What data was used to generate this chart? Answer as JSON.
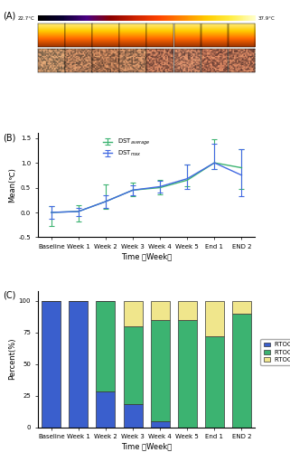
{
  "panel_A_label": "(A)",
  "panel_B_label": "(B)",
  "panel_C_label": "(C)",
  "colorbar_min": "22.7°C",
  "colorbar_max": "37.9°C",
  "time_labels": [
    "Baseline",
    "Week 1",
    "Week 2",
    "Week 3",
    "Week 4",
    "Week 5",
    "End 1",
    "END 2"
  ],
  "dst_avg_mean": [
    0.0,
    0.02,
    0.22,
    0.45,
    0.5,
    0.65,
    1.0,
    0.9
  ],
  "dst_avg_err_pos": [
    0.12,
    0.13,
    0.35,
    0.15,
    0.15,
    0.32,
    0.48,
    0.38
  ],
  "dst_avg_err_neg": [
    0.28,
    0.2,
    0.14,
    0.13,
    0.13,
    0.12,
    0.12,
    0.42
  ],
  "dst_max_mean": [
    0.0,
    0.02,
    0.22,
    0.45,
    0.52,
    0.68,
    1.0,
    0.75
  ],
  "dst_max_err_pos": [
    0.13,
    0.08,
    0.12,
    0.1,
    0.12,
    0.28,
    0.38,
    0.52
  ],
  "dst_max_err_neg": [
    0.13,
    0.1,
    0.12,
    0.1,
    0.12,
    0.2,
    0.12,
    0.43
  ],
  "line_color_avg": "#3cb371",
  "line_color_max": "#4169e1",
  "ylim_B": [
    -0.5,
    1.6
  ],
  "yticks_B": [
    -0.5,
    0.0,
    0.5,
    1.0,
    1.5
  ],
  "ylabel_B": "Mean(℃)",
  "xlabel_B": "Time （Week）",
  "bar_rtog0": [
    100,
    100,
    28,
    18,
    5,
    0,
    0,
    0
  ],
  "bar_rtog1": [
    0,
    0,
    72,
    62,
    80,
    85,
    72,
    90
  ],
  "bar_rtog2": [
    0,
    0,
    0,
    20,
    15,
    15,
    28,
    10
  ],
  "color_rtog0": "#3a5fcd",
  "color_rtog1": "#3cb371",
  "color_rtog2": "#f0e68c",
  "yticks_C": [
    0,
    25,
    50,
    75,
    100
  ],
  "ylabel_C": "Percent(%)",
  "xlabel_C": "Time （Week）"
}
